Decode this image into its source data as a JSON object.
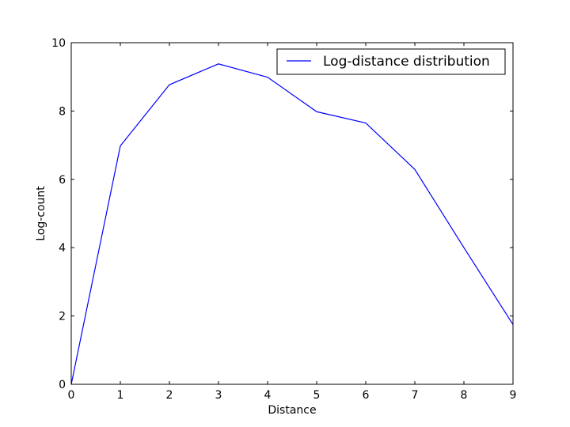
{
  "chart_data": {
    "type": "line",
    "title": "",
    "xlabel": "Distance",
    "ylabel": "Log-count",
    "xlim": [
      0,
      9
    ],
    "ylim": [
      0,
      10
    ],
    "xticks": [
      "0",
      "1",
      "2",
      "3",
      "4",
      "5",
      "6",
      "7",
      "8",
      "9"
    ],
    "yticks": [
      "0",
      "2",
      "4",
      "6",
      "8",
      "10"
    ],
    "grid": false,
    "legend_position": "top-right",
    "series": [
      {
        "name": "Log-distance distribution",
        "color": "#0000ff",
        "x": [
          0,
          1,
          2,
          3,
          4,
          5,
          6,
          7,
          8,
          9
        ],
        "y": [
          0,
          6.98,
          8.77,
          9.38,
          8.99,
          7.98,
          7.65,
          6.29,
          4.0,
          1.75
        ]
      }
    ]
  }
}
